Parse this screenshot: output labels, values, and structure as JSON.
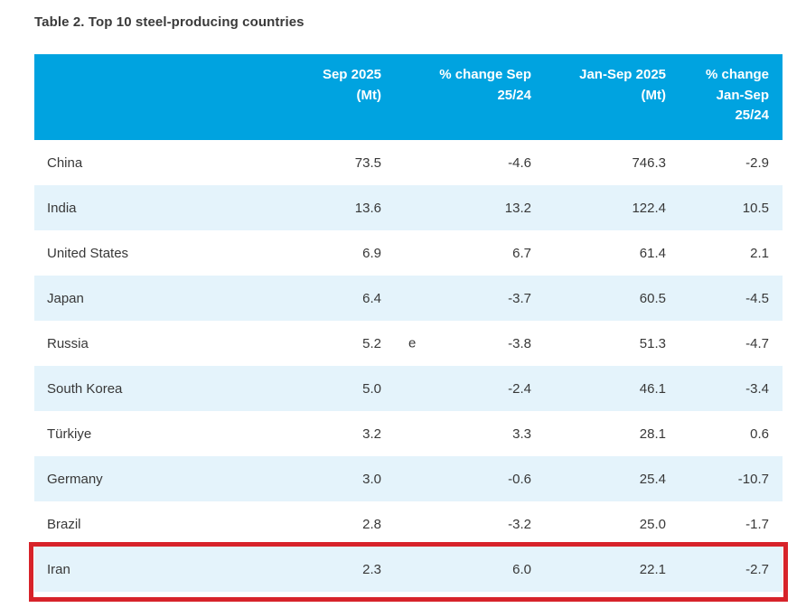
{
  "title": "Table 2. Top 10 steel-producing countries",
  "colors": {
    "header_background": "#00a3e0",
    "header_text": "#ffffff",
    "alt_row_background": "#e4f3fb",
    "row_background": "#ffffff",
    "body_text": "#383838",
    "highlight_border": "#d7232a"
  },
  "table": {
    "columns": [
      {
        "key": "country",
        "label": ""
      },
      {
        "key": "sep_2025_mt",
        "label": "Sep 2025\n(Mt)"
      },
      {
        "key": "pct_change_sep",
        "label": "% change Sep\n25/24"
      },
      {
        "key": "jan_sep_2025_mt",
        "label": "Jan-Sep 2025\n(Mt)"
      },
      {
        "key": "pct_change_jan_sep",
        "label": "% change\nJan-Sep\n25/24"
      }
    ],
    "rows": [
      {
        "country": "China",
        "sep_2025_mt": "73.5",
        "marker": "",
        "pct_change_sep": "-4.6",
        "jan_sep_2025_mt": "746.3",
        "pct_change_jan_sep": "-2.9"
      },
      {
        "country": "India",
        "sep_2025_mt": "13.6",
        "marker": "",
        "pct_change_sep": "13.2",
        "jan_sep_2025_mt": "122.4",
        "pct_change_jan_sep": "10.5"
      },
      {
        "country": "United States",
        "sep_2025_mt": "6.9",
        "marker": "",
        "pct_change_sep": "6.7",
        "jan_sep_2025_mt": "61.4",
        "pct_change_jan_sep": "2.1"
      },
      {
        "country": "Japan",
        "sep_2025_mt": "6.4",
        "marker": "",
        "pct_change_sep": "-3.7",
        "jan_sep_2025_mt": "60.5",
        "pct_change_jan_sep": "-4.5"
      },
      {
        "country": "Russia",
        "sep_2025_mt": "5.2",
        "marker": "e",
        "pct_change_sep": "-3.8",
        "jan_sep_2025_mt": "51.3",
        "pct_change_jan_sep": "-4.7"
      },
      {
        "country": "South Korea",
        "sep_2025_mt": "5.0",
        "marker": "",
        "pct_change_sep": "-2.4",
        "jan_sep_2025_mt": "46.1",
        "pct_change_jan_sep": "-3.4"
      },
      {
        "country": "Türkiye",
        "sep_2025_mt": "3.2",
        "marker": "",
        "pct_change_sep": "3.3",
        "jan_sep_2025_mt": "28.1",
        "pct_change_jan_sep": "0.6"
      },
      {
        "country": "Germany",
        "sep_2025_mt": "3.0",
        "marker": "",
        "pct_change_sep": "-0.6",
        "jan_sep_2025_mt": "25.4",
        "pct_change_jan_sep": "-10.7"
      },
      {
        "country": "Brazil",
        "sep_2025_mt": "2.8",
        "marker": "",
        "pct_change_sep": "-3.2",
        "jan_sep_2025_mt": "25.0",
        "pct_change_jan_sep": "-1.7"
      },
      {
        "country": "Iran",
        "sep_2025_mt": "2.3",
        "marker": "",
        "pct_change_sep": "6.0",
        "jan_sep_2025_mt": "22.1",
        "pct_change_jan_sep": "-2.7"
      }
    ],
    "highlighted_row": "Iran"
  },
  "chart_data": {
    "type": "table",
    "title": "Table 2. Top 10 steel-producing countries",
    "columns": [
      "",
      "Sep 2025 (Mt)",
      "% change Sep 25/24",
      "Jan-Sep 2025 (Mt)",
      "% change Jan-Sep 25/24"
    ],
    "rows": [
      [
        "China",
        73.5,
        -4.6,
        746.3,
        -2.9
      ],
      [
        "India",
        13.6,
        13.2,
        122.4,
        10.5
      ],
      [
        "United States",
        6.9,
        6.7,
        61.4,
        2.1
      ],
      [
        "Japan",
        6.4,
        -3.7,
        60.5,
        -4.5
      ],
      [
        "Russia",
        5.2,
        -3.8,
        51.3,
        -4.7
      ],
      [
        "South Korea",
        5.0,
        -2.4,
        46.1,
        -3.4
      ],
      [
        "Türkiye",
        3.2,
        3.3,
        28.1,
        0.6
      ],
      [
        "Germany",
        3.0,
        -0.6,
        25.4,
        -10.7
      ],
      [
        "Brazil",
        2.8,
        -3.2,
        25.0,
        -1.7
      ],
      [
        "Iran",
        2.3,
        6.0,
        22.1,
        -2.7
      ]
    ],
    "notes": "Russia Sep 2025 value is flagged 'e' (estimate); Iran row is highlighted with a red box"
  }
}
